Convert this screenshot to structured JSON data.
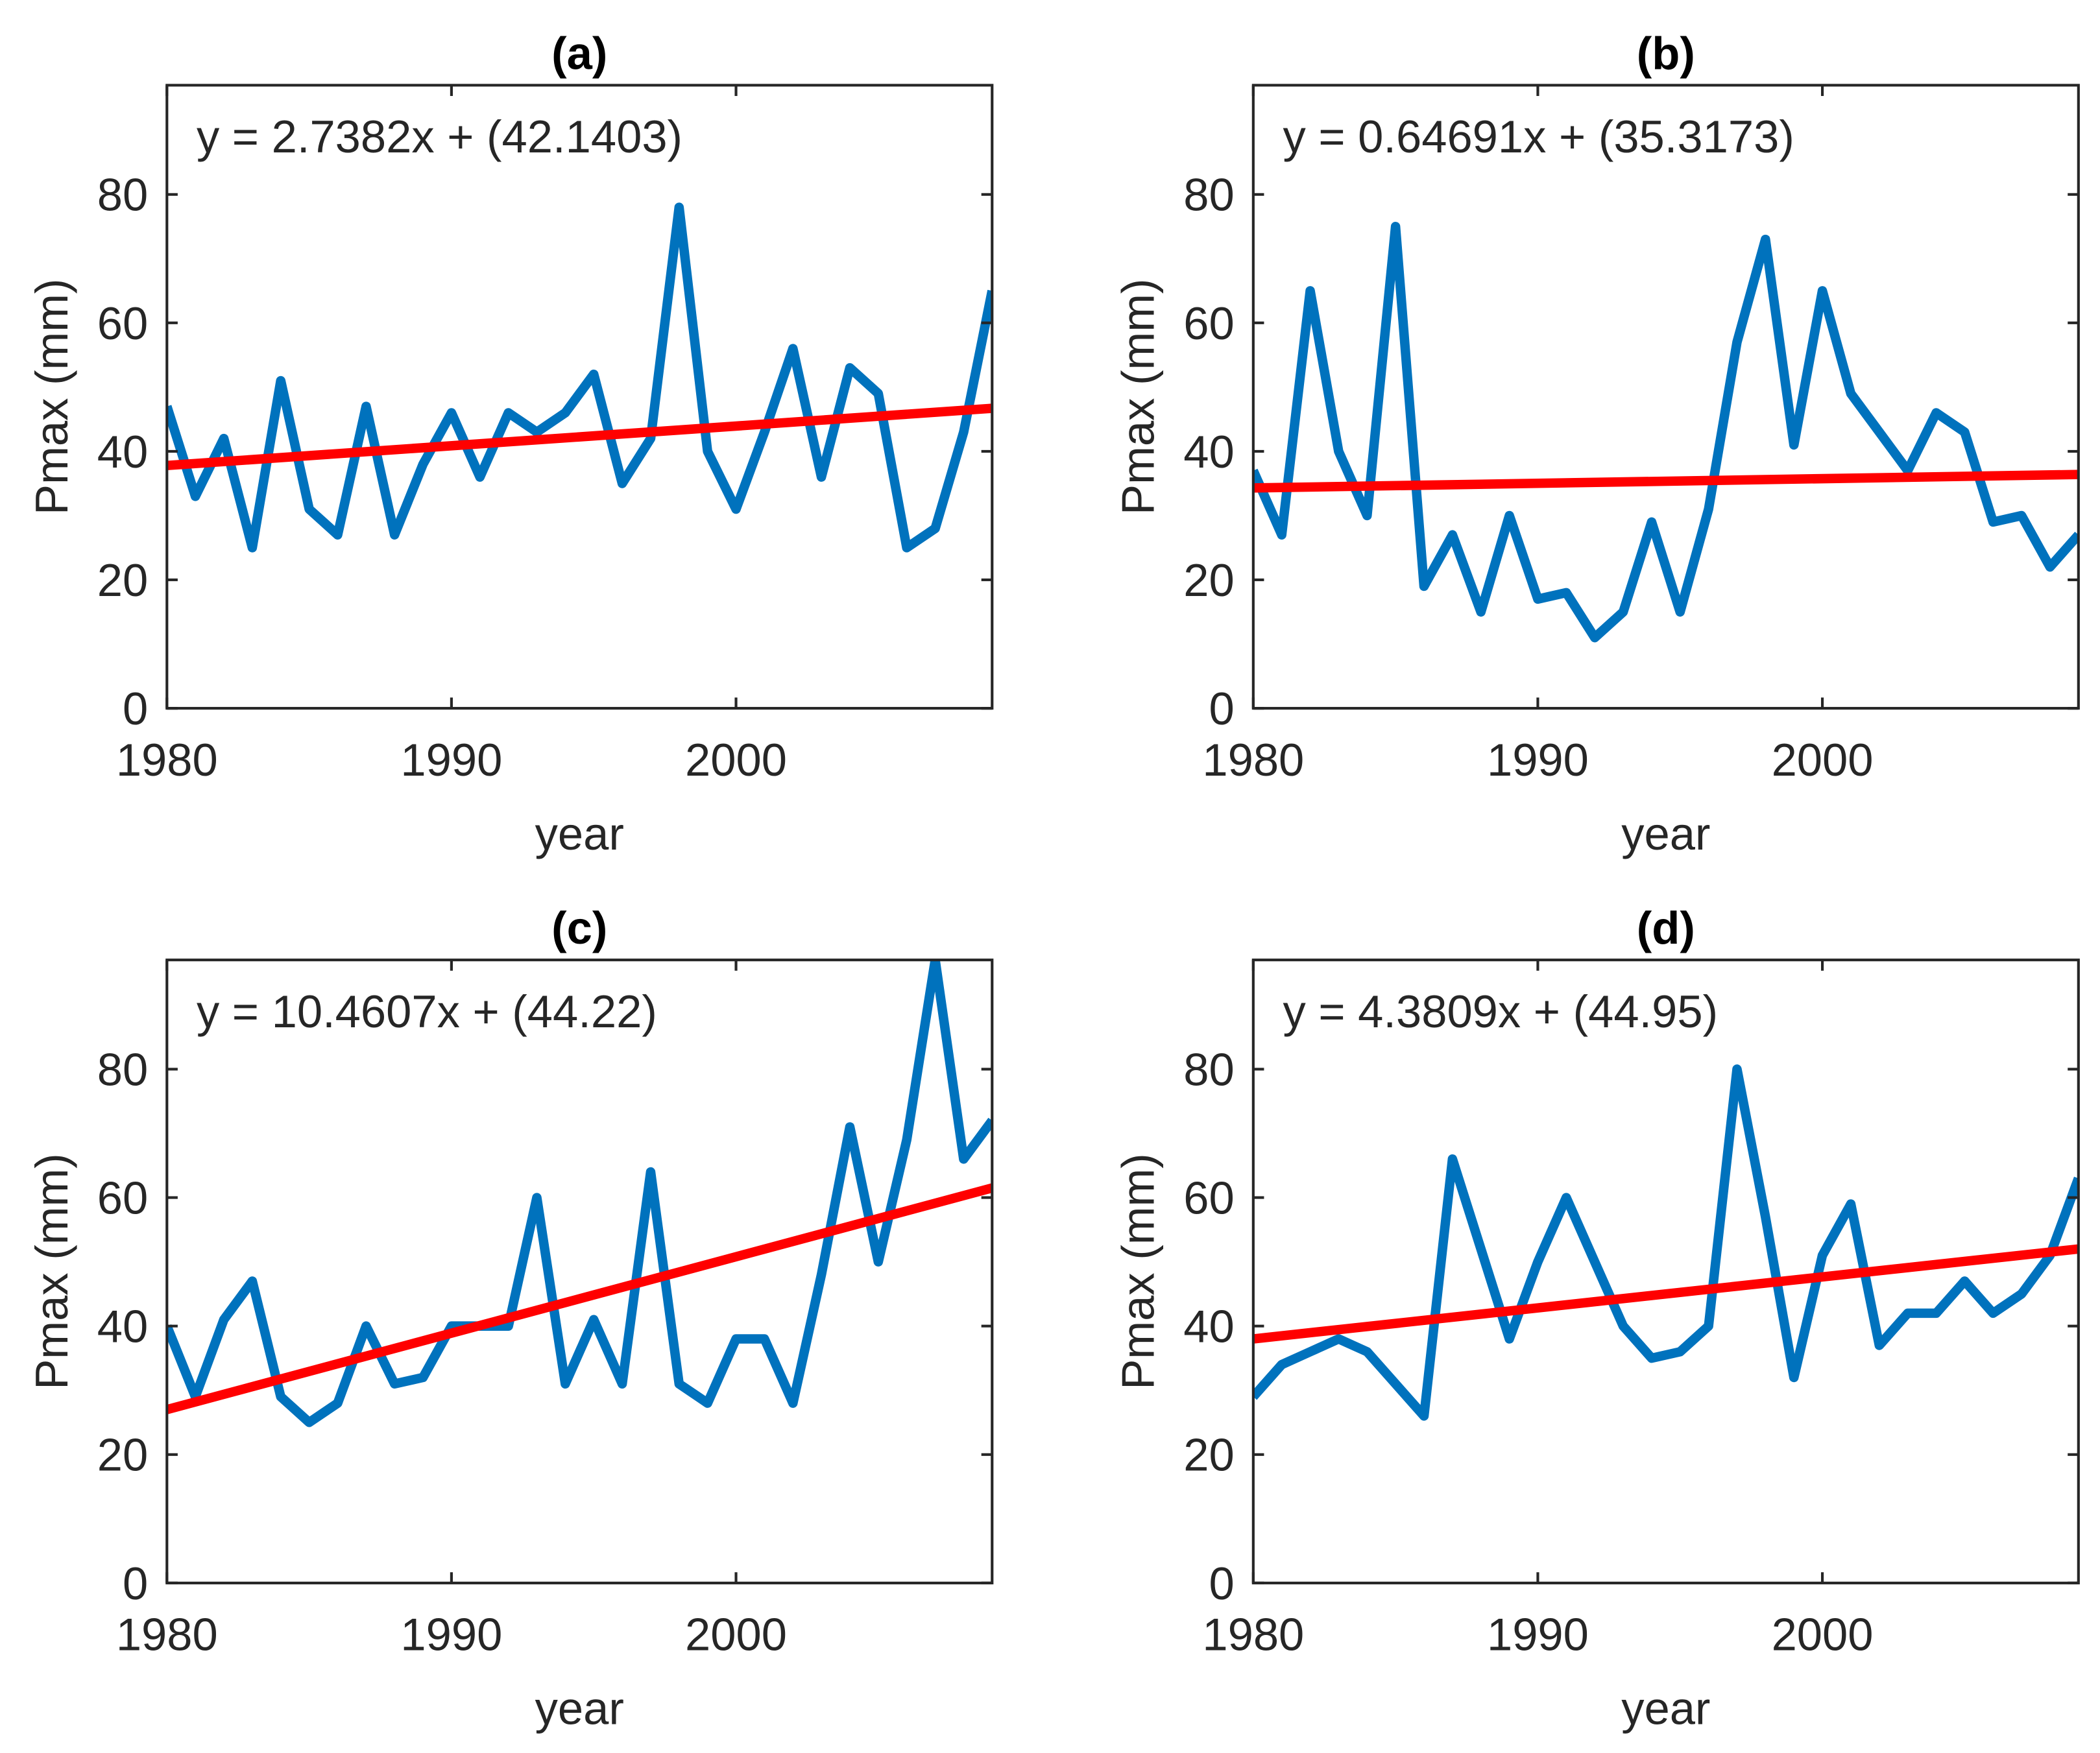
{
  "chart_data": [
    {
      "type": "line",
      "title": "(a)",
      "annotation": "y = 2.7382x + (42.1403)",
      "xlabel": "year",
      "ylabel": "Pmax (mm)",
      "x": [
        1980,
        1981,
        1982,
        1983,
        1984,
        1985,
        1986,
        1987,
        1988,
        1989,
        1990,
        1991,
        1992,
        1993,
        1994,
        1995,
        1996,
        1997,
        1998,
        1999,
        2000,
        2001,
        2002,
        2003,
        2004,
        2005,
        2006,
        2007,
        2008,
        2009
      ],
      "series": [
        {
          "color": "#0072bd",
          "values": [
            47,
            33,
            42,
            25,
            51,
            31,
            27,
            47,
            27,
            38,
            46,
            36,
            46,
            43,
            46,
            52,
            35,
            42,
            78,
            40,
            31,
            43,
            56,
            36,
            53,
            49,
            25,
            28,
            43,
            65
          ]
        },
        {
          "color": "#ff0000",
          "x": [
            1980,
            2009
          ],
          "values": [
            37.8,
            46.7
          ]
        }
      ],
      "xlim": [
        1980,
        2009
      ],
      "ylim": [
        0,
        97
      ],
      "xticks": [
        1980,
        1990,
        2000
      ],
      "yticks": [
        0,
        20,
        40,
        60,
        80
      ]
    },
    {
      "type": "line",
      "title": "(b)",
      "annotation": "y = 0.64691x + (35.3173)",
      "xlabel": "year",
      "ylabel": "Pmax (mm)",
      "x": [
        1980,
        1981,
        1982,
        1983,
        1984,
        1985,
        1986,
        1987,
        1988,
        1989,
        1990,
        1991,
        1992,
        1993,
        1994,
        1995,
        1996,
        1997,
        1998,
        1999,
        2000,
        2001,
        2002,
        2003,
        2004,
        2005,
        2006,
        2007,
        2008,
        2009
      ],
      "series": [
        {
          "color": "#0072bd",
          "values": [
            37,
            27,
            65,
            40,
            30,
            75,
            19,
            27,
            15,
            30,
            17,
            18,
            11,
            15,
            29,
            15,
            31,
            57,
            73,
            41,
            65,
            49,
            43,
            37,
            46,
            43,
            29,
            30,
            22,
            27
          ]
        },
        {
          "color": "#ff0000",
          "x": [
            1980,
            2009
          ],
          "values": [
            34.3,
            36.4
          ]
        }
      ],
      "xlim": [
        1980,
        2009
      ],
      "ylim": [
        0,
        97
      ],
      "xticks": [
        1980,
        1990,
        2000
      ],
      "yticks": [
        0,
        20,
        40,
        60,
        80
      ]
    },
    {
      "type": "line",
      "title": "(c)",
      "annotation": "y = 10.4607x + (44.22)",
      "xlabel": "year",
      "ylabel": "Pmax (mm)",
      "x": [
        1980,
        1981,
        1982,
        1983,
        1984,
        1985,
        1986,
        1987,
        1988,
        1989,
        1990,
        1991,
        1992,
        1993,
        1994,
        1995,
        1996,
        1997,
        1998,
        1999,
        2000,
        2001,
        2002,
        2003,
        2004,
        2005,
        2006,
        2007,
        2008,
        2009
      ],
      "series": [
        {
          "color": "#0072bd",
          "values": [
            40,
            29,
            41,
            47,
            29,
            25,
            28,
            40,
            31,
            32,
            40,
            40,
            40,
            60,
            31,
            41,
            31,
            64,
            31,
            28,
            38,
            38,
            28,
            48,
            71,
            50,
            69,
            97,
            66,
            72
          ]
        },
        {
          "color": "#ff0000",
          "x": [
            1980,
            2009
          ],
          "values": [
            27,
            61.5
          ]
        }
      ],
      "xlim": [
        1980,
        2009
      ],
      "ylim": [
        0,
        97
      ],
      "xticks": [
        1980,
        1990,
        2000
      ],
      "yticks": [
        0,
        20,
        40,
        60,
        80
      ]
    },
    {
      "type": "line",
      "title": "(d)",
      "annotation": "y = 4.3809x + (44.95)",
      "xlabel": "year",
      "ylabel": "Pmax (mm)",
      "x": [
        1980,
        1981,
        1982,
        1983,
        1984,
        1985,
        1986,
        1987,
        1988,
        1989,
        1990,
        1991,
        1992,
        1993,
        1994,
        1995,
        1996,
        1997,
        1998,
        1999,
        2000,
        2001,
        2002,
        2003,
        2004,
        2005,
        2006,
        2007,
        2008,
        2009
      ],
      "series": [
        {
          "color": "#0072bd",
          "values": [
            29,
            34,
            36,
            38,
            36,
            31,
            26,
            66,
            52,
            38,
            50,
            60,
            50,
            40,
            35,
            36,
            40,
            80,
            57,
            32,
            51,
            59,
            37,
            42,
            42,
            47,
            42,
            45,
            51,
            63
          ]
        },
        {
          "color": "#ff0000",
          "x": [
            1980,
            2009
          ],
          "values": [
            38,
            52
          ]
        }
      ],
      "xlim": [
        1980,
        2009
      ],
      "ylim": [
        0,
        97
      ],
      "xticks": [
        1980,
        1990,
        2000
      ],
      "yticks": [
        0,
        20,
        40,
        60,
        80
      ]
    }
  ]
}
